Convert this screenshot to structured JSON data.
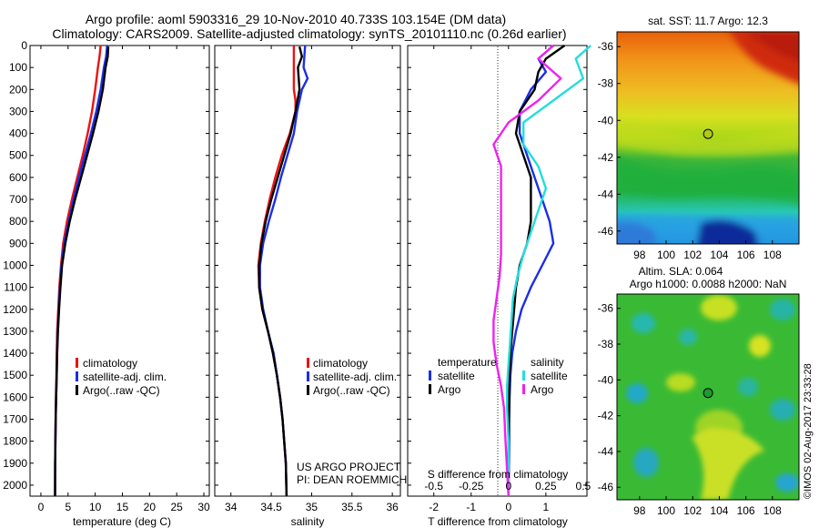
{
  "header": {
    "line1": "Argo profile: aoml 5903316_29 10-Nov-2010 40.733S 103.154E (DM data)",
    "line2": "Climatology: CARS2009. Satellite-adjusted climatology: synTS_20101110.nc (0.26d earlier)"
  },
  "credits": {
    "project": "US ARGO PROJECT",
    "pi": "PI: DEAN ROEMMICH",
    "stamp": "©IMOS 02-Aug-2017 23:33:28"
  },
  "colors": {
    "climatology": "#ee1111",
    "satellite": "#1a2ee6",
    "argo": "#000000",
    "sal_satellite": "#22dddd",
    "sal_argo": "#ee22ee"
  },
  "chart_data": [
    {
      "type": "line",
      "name": "temperature-profile",
      "xlabel": "temperature (deg C)",
      "ylabel": "",
      "xlim": [
        -2,
        31
      ],
      "ylim": [
        0,
        2050
      ],
      "y_inverted": true,
      "xticks": [
        0,
        5,
        10,
        15,
        20,
        25,
        30
      ],
      "yticks": [
        0,
        100,
        200,
        300,
        400,
        500,
        600,
        700,
        800,
        900,
        1000,
        1100,
        1200,
        1300,
        1400,
        1500,
        1600,
        1700,
        1800,
        1900,
        2000
      ],
      "legend": [
        "climatology",
        "satellite-adj. clim.",
        "Argo(..raw -QC)"
      ],
      "legend_position": "bottom-center",
      "series": [
        {
          "name": "climatology",
          "x": [
            11.0,
            10.8,
            10.5,
            10.0,
            9.4,
            8.6,
            7.7,
            6.7,
            5.7,
            4.8,
            4.1,
            3.7,
            3.4,
            3.2,
            3.0,
            2.9,
            2.85,
            2.75,
            2.7,
            2.65,
            2.62,
            2.6
          ],
          "y": [
            0,
            50,
            100,
            200,
            300,
            400,
            500,
            600,
            700,
            800,
            900,
            1000,
            1100,
            1200,
            1300,
            1400,
            1500,
            1600,
            1700,
            1800,
            1900,
            2050
          ]
        },
        {
          "name": "satellite-adj. clim.",
          "x": [
            12.2,
            12.0,
            11.6,
            11.0,
            10.2,
            9.2,
            8.1,
            7.0,
            6.0,
            5.1,
            4.3,
            3.8,
            3.5,
            3.3,
            3.1,
            3.0,
            2.9,
            2.8,
            2.72,
            2.67,
            2.62,
            2.6
          ],
          "y": [
            0,
            50,
            100,
            200,
            300,
            400,
            500,
            600,
            700,
            800,
            900,
            1000,
            1100,
            1200,
            1300,
            1400,
            1500,
            1600,
            1700,
            1800,
            1900,
            2050
          ]
        },
        {
          "name": "Argo(..raw -QC)",
          "x": [
            12.4,
            12.3,
            11.9,
            11.4,
            10.6,
            9.6,
            8.5,
            7.4,
            6.3,
            5.3,
            4.5,
            3.9,
            3.6,
            3.35,
            3.15,
            3.0,
            2.9,
            2.8,
            2.72,
            2.67,
            2.62,
            2.6
          ],
          "y": [
            5,
            50,
            100,
            200,
            300,
            400,
            500,
            600,
            700,
            800,
            900,
            1000,
            1100,
            1200,
            1300,
            1400,
            1500,
            1600,
            1700,
            1800,
            1900,
            2050
          ]
        }
      ]
    },
    {
      "type": "line",
      "name": "salinity-profile",
      "xlabel": "salinity",
      "ylabel": "",
      "xlim": [
        33.8,
        36.1
      ],
      "ylim": [
        0,
        2050
      ],
      "y_inverted": true,
      "xticks": [
        34,
        34.5,
        35,
        35.5,
        36
      ],
      "xticklabels": [
        "34",
        "34.5",
        "35",
        "35.5",
        "36"
      ],
      "legend": [
        "climatology",
        "satellite-adj. clim.",
        "Argo(..raw -QC)"
      ],
      "legend_position": "bottom-center",
      "series": [
        {
          "name": "climatology",
          "x": [
            34.78,
            34.78,
            34.78,
            34.8,
            34.8,
            34.73,
            34.63,
            34.55,
            34.48,
            34.42,
            34.37,
            34.34,
            34.35,
            34.39,
            34.46,
            34.52,
            34.57,
            34.61,
            34.64,
            34.66,
            34.68,
            34.69
          ],
          "y": [
            0,
            100,
            200,
            250,
            300,
            400,
            500,
            600,
            700,
            800,
            900,
            1000,
            1100,
            1200,
            1300,
            1400,
            1500,
            1600,
            1700,
            1800,
            1900,
            2050
          ]
        },
        {
          "name": "satellite-adj. clim.",
          "x": [
            34.92,
            34.9,
            34.95,
            34.88,
            34.82,
            34.78,
            34.7,
            34.62,
            34.55,
            34.47,
            34.4,
            34.36,
            34.36,
            34.4,
            34.46,
            34.53,
            34.57,
            34.61,
            34.64,
            34.66,
            34.68,
            34.69
          ],
          "y": [
            0,
            100,
            150,
            200,
            300,
            400,
            500,
            600,
            700,
            800,
            900,
            1000,
            1100,
            1200,
            1300,
            1400,
            1500,
            1600,
            1700,
            1800,
            1900,
            2050
          ]
        },
        {
          "name": "Argo(..raw -QC)",
          "x": [
            34.85,
            34.88,
            34.83,
            34.85,
            34.8,
            34.74,
            34.66,
            34.58,
            34.5,
            34.43,
            34.38,
            34.35,
            34.35,
            34.39,
            34.46,
            34.52,
            34.57,
            34.61,
            34.64,
            34.66,
            34.68,
            34.69
          ],
          "y": [
            5,
            50,
            100,
            200,
            300,
            400,
            500,
            600,
            700,
            800,
            900,
            1000,
            1100,
            1200,
            1300,
            1400,
            1500,
            1600,
            1700,
            1800,
            1900,
            2050
          ]
        }
      ]
    },
    {
      "type": "line",
      "name": "difference-profile",
      "xlabel": "T difference from climatology",
      "toplabel": "S difference from climatology",
      "xlim": [
        -2.7,
        2.1
      ],
      "ylim": [
        0,
        2050
      ],
      "y_inverted": true,
      "xticks": [
        -2,
        -1,
        0,
        1
      ],
      "xticklabels": [
        "-2",
        "-1",
        "0",
        "1"
      ],
      "sticks": [
        -0.5,
        -0.25,
        0,
        0.25,
        0.5
      ],
      "sticklabels": [
        "-0.5",
        "-0.25",
        "0",
        "0.25",
        "0.5"
      ],
      "legend_groups": {
        "temperature": [
          "satellite",
          "Argo"
        ],
        "salinity": [
          "satellite",
          "Argo"
        ]
      },
      "legend_titles": [
        "temperature",
        "salinity"
      ],
      "legend_position": "bottom-center",
      "series": [
        {
          "name": "temperature satellite",
          "x": [
            1.2,
            0.8,
            1.0,
            0.6,
            0.3,
            0.3,
            0.5,
            0.7,
            0.9,
            1.1,
            1.2,
            0.9,
            0.6,
            0.35,
            0.2,
            0.1,
            0.05,
            0.03,
            0.02,
            0.02,
            0.0
          ],
          "y": [
            0,
            60,
            120,
            200,
            300,
            400,
            500,
            600,
            700,
            800,
            900,
            1000,
            1100,
            1200,
            1300,
            1400,
            1500,
            1600,
            1700,
            1800,
            2050
          ]
        },
        {
          "name": "temperature Argo",
          "x": [
            1.5,
            1.0,
            0.8,
            0.7,
            0.3,
            0.2,
            0.4,
            0.6,
            0.6,
            0.6,
            0.5,
            0.3,
            0.2,
            0.15,
            0.1,
            0.05,
            0.03,
            0.02,
            0.01,
            0.0,
            0.0
          ],
          "y": [
            0,
            60,
            120,
            200,
            300,
            400,
            500,
            600,
            700,
            800,
            900,
            1000,
            1100,
            1200,
            1300,
            1400,
            1500,
            1600,
            1700,
            1800,
            2050
          ]
        },
        {
          "name": "salinity satellite",
          "x": [
            0.55,
            0.45,
            0.5,
            0.3,
            0.1,
            0.1,
            0.2,
            0.25,
            0.2,
            0.15,
            0.1,
            0.06,
            0.03,
            0.02,
            0.01,
            0.0,
            -0.01,
            -0.01,
            0.0,
            0.0
          ],
          "y": [
            0,
            60,
            150,
            250,
            350,
            450,
            550,
            650,
            750,
            850,
            950,
            1050,
            1150,
            1250,
            1350,
            1450,
            1550,
            1650,
            1800,
            2050
          ]
        },
        {
          "name": "salinity Argo",
          "x": [
            0.3,
            0.2,
            0.35,
            0.2,
            0.0,
            -0.1,
            -0.05,
            -0.05,
            -0.05,
            -0.05,
            -0.05,
            -0.06,
            -0.08,
            -0.1,
            -0.1,
            -0.08,
            -0.05,
            -0.03,
            -0.02,
            0.0
          ],
          "y": [
            0,
            60,
            150,
            250,
            350,
            450,
            550,
            650,
            750,
            850,
            950,
            1050,
            1150,
            1250,
            1350,
            1450,
            1550,
            1650,
            1800,
            2050
          ]
        }
      ]
    },
    {
      "type": "heatmap",
      "name": "sst-map",
      "title": "sat. SST: 11.7 Argo: 12.3",
      "xlim": [
        96.3,
        110
      ],
      "ylim": [
        -46.7,
        -35.2
      ],
      "xticks": [
        98,
        100,
        102,
        104,
        106,
        108
      ],
      "yticks": [
        -36,
        -38,
        -40,
        -42,
        -44,
        -46
      ],
      "marker": {
        "lon": 103.154,
        "lat": -40.733
      }
    },
    {
      "type": "heatmap",
      "name": "sla-map",
      "title1": "Altim. SLA: 0.064",
      "title2": "Argo h1000: 0.0088 h2000: NaN",
      "xlim": [
        96.3,
        110
      ],
      "ylim": [
        -46.7,
        -35.2
      ],
      "xticks": [
        98,
        100,
        102,
        104,
        106,
        108
      ],
      "yticks": [
        -36,
        -38,
        -40,
        -42,
        -44,
        -46
      ],
      "marker": {
        "lon": 103.154,
        "lat": -40.733
      }
    }
  ]
}
